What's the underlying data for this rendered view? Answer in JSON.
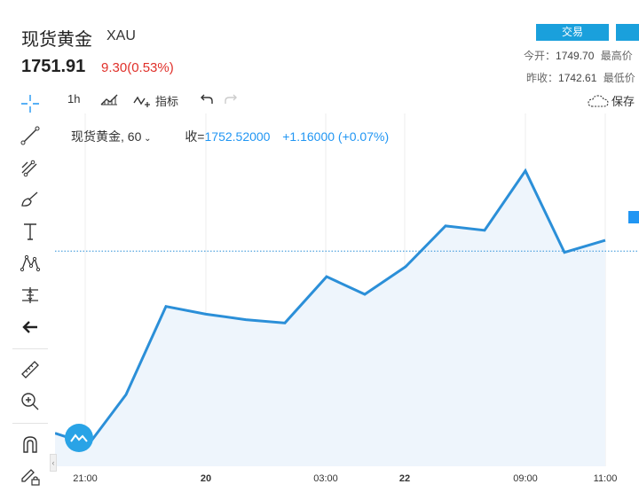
{
  "header": {
    "title": "现货黄金",
    "symbol": "XAU",
    "price": "1751.91",
    "change": "9.30(0.53%)",
    "trade_button": "交易",
    "stats": {
      "open_label": "今开：",
      "open_value": "1749.70",
      "high_label": "最高价",
      "prev_close_label": "昨收：",
      "prev_close_value": "1742.61",
      "low_label": "最低价"
    }
  },
  "toolbar": {
    "interval": "1h",
    "indicators_label": "指标",
    "save_label": "保存"
  },
  "legend": {
    "symbol": "现货黄金",
    "interval": "60",
    "close_label": "收=",
    "close_value": "1752.52000",
    "change": "+1.16000 (+0.07%)"
  },
  "colors": {
    "line": "#2b8fd8",
    "fill": "#eef5fc",
    "dotted": "#2b8fd8",
    "accent": "#1aa0dc"
  },
  "icons": [
    "crosshair-icon",
    "trend-line-icon",
    "fib-icon",
    "brush-icon",
    "text-icon",
    "pattern-icon",
    "measure-icon",
    "back-arrow-icon",
    "ruler-icon",
    "zoom-in-icon",
    "magnet-icon",
    "lock-pen-icon"
  ],
  "chart_data": {
    "type": "area",
    "x_tick_labels": [
      "21:00",
      "20",
      "03:00",
      "22",
      "09:00",
      "11:00"
    ],
    "bold_ticks": [
      "20",
      "22"
    ],
    "values": [
      1736.0,
      1735.0,
      1739.5,
      1747.5,
      1746.8,
      1746.3,
      1746.0,
      1750.2,
      1748.6,
      1751.1,
      1754.8,
      1754.4,
      1759.8,
      1752.4,
      1753.5
    ],
    "current_value": 1752.52,
    "ylim": [
      1733.0,
      1765.0
    ]
  }
}
